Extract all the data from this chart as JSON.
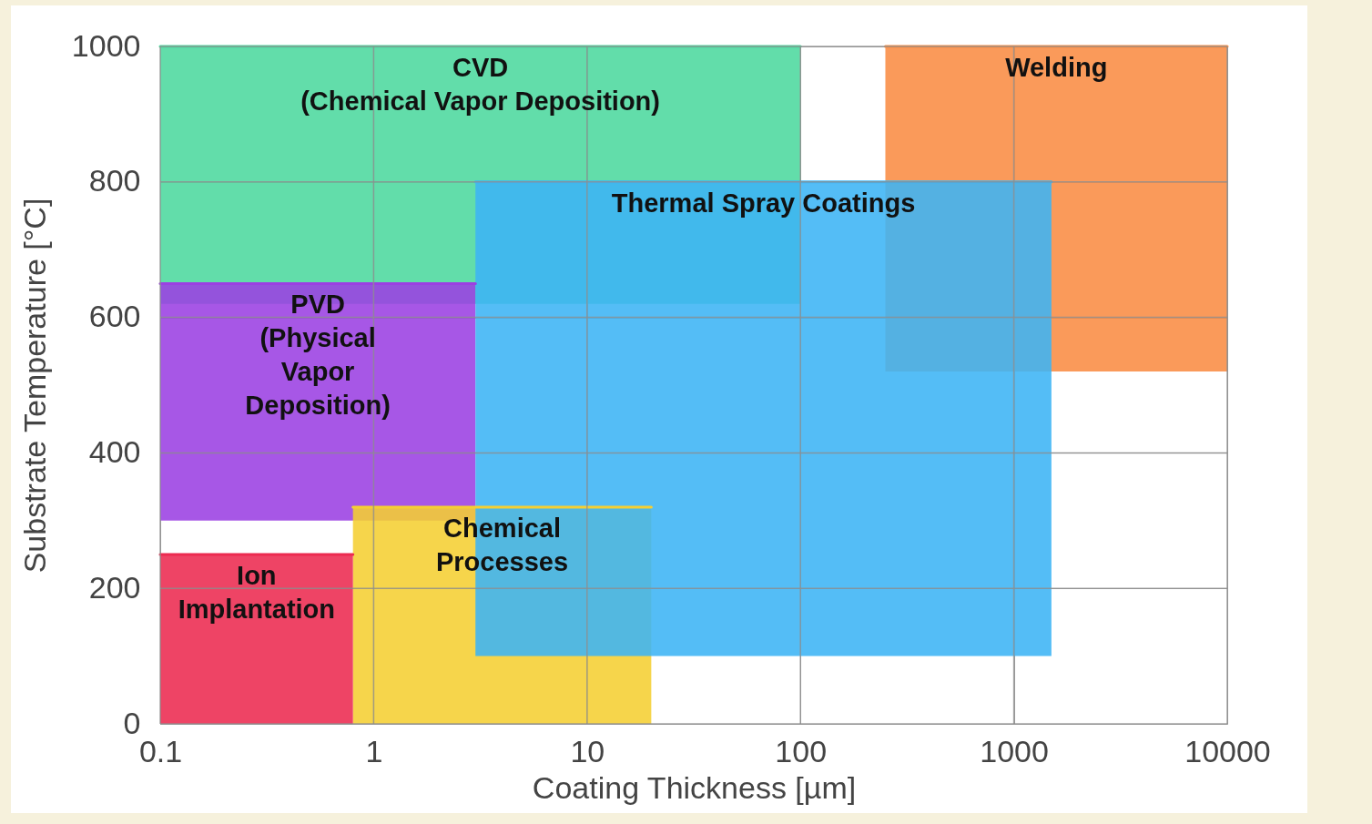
{
  "chart_data": {
    "type": "line",
    "xlabel": "Coating Thickness [µm]",
    "ylabel": "Substrate Temperature [°C]",
    "log": "x",
    "grid": true,
    "xlim": [
      0.1,
      10000
    ],
    "xticks": [
      0.1,
      1,
      10,
      100,
      1000,
      10000
    ],
    "ylim": [
      0,
      1000
    ],
    "yticks": [
      0,
      200,
      400,
      600,
      800,
      1000
    ],
    "series": [
      {
        "name": "CVD\n(Chemical Vapor Deposition)",
        "color": "#4cd89e",
        "x": [
          0.1,
          100
        ],
        "values": [
          1000,
          1000
        ],
        "upper": [
          1000,
          1000
        ],
        "lower": [
          620,
          620
        ]
      },
      {
        "name": "Welding",
        "color": "#f98c43",
        "x": [
          250,
          10000
        ],
        "values": [
          1000,
          1000
        ],
        "upper": [
          1000,
          1000
        ],
        "lower": [
          520,
          520
        ]
      },
      {
        "name": "PVD\n(Physical\nVapor\nDeposition)",
        "color": "#9b40e2",
        "x": [
          0.1,
          3
        ],
        "values": [
          650,
          650
        ],
        "upper": [
          650,
          650
        ],
        "lower": [
          300,
          300
        ]
      },
      {
        "name": "Chemical\nProcesses",
        "color": "#f5cf32",
        "x": [
          0.8,
          20
        ],
        "values": [
          320,
          320
        ],
        "upper": [
          320,
          320
        ],
        "lower": [
          0,
          0
        ]
      },
      {
        "name": "Ion\nImplantation",
        "color": "#ec2a50",
        "x": [
          0.1,
          0.8
        ],
        "values": [
          250,
          250
        ],
        "upper": [
          250,
          250
        ],
        "lower": [
          0,
          0
        ]
      },
      {
        "name": "Thermal Spray Coatings",
        "color": "#3cb4f5",
        "x": [
          3,
          1500
        ],
        "values": [
          800,
          800
        ],
        "upper": [
          800,
          800
        ],
        "lower": [
          100,
          100
        ]
      }
    ]
  }
}
